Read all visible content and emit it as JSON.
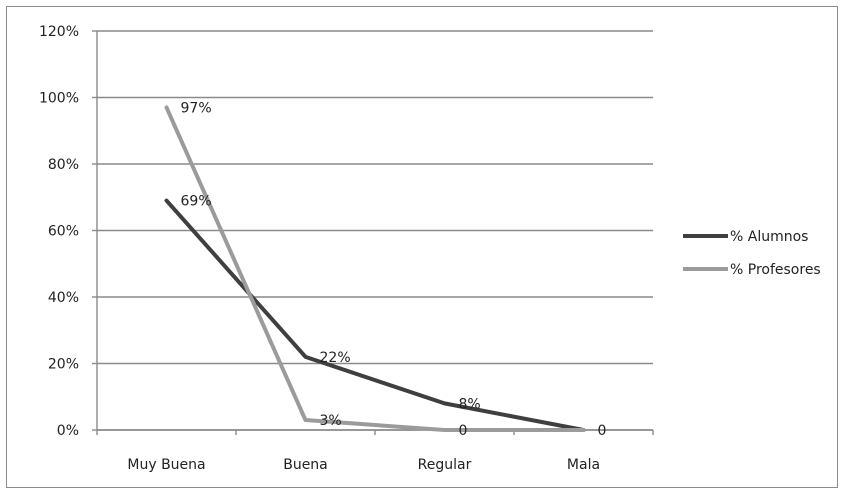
{
  "chart_data": {
    "type": "line",
    "categories": [
      "Muy Buena",
      "Buena",
      "Regular",
      "Mala"
    ],
    "ylim": [
      0,
      120
    ],
    "yticks": [
      "0%",
      "20%",
      "40%",
      "60%",
      "80%",
      "100%",
      "120%"
    ],
    "grid": true,
    "legend_position": "right",
    "series": [
      {
        "name": "% Alumnos",
        "color": "#3f3f3f",
        "values": [
          69,
          22,
          8,
          0
        ],
        "labels": [
          "69%",
          "22%",
          "8%",
          "0"
        ]
      },
      {
        "name": "% Profesores",
        "color": "#9b9b9b",
        "values": [
          97,
          3,
          0,
          0
        ],
        "labels": [
          "97%",
          "3%",
          "0",
          ""
        ]
      }
    ]
  }
}
